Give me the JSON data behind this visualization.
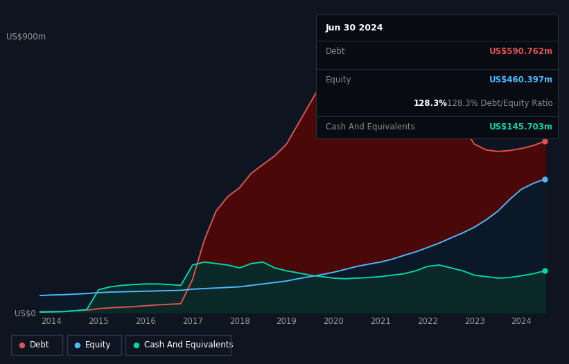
{
  "bg_color": "#0e1520",
  "plot_bg_color": "#0e1520",
  "grid_color": "#1a2535",
  "debt_color": "#e05252",
  "equity_color": "#4db8ff",
  "cash_color": "#00d4aa",
  "debt_fill": "#4a0808",
  "equity_fill": "#0a1828",
  "cash_fill": "#0a2828",
  "legend_labels": [
    "Debt",
    "Equity",
    "Cash And Equivalents"
  ],
  "tooltip_date": "Jun 30 2024",
  "tooltip_debt_label": "Debt",
  "tooltip_debt": "US$590.762m",
  "tooltip_equity_label": "Equity",
  "tooltip_equity": "US$460.397m",
  "tooltip_ratio": "128.3%",
  "tooltip_ratio_text": " Debt/Equity Ratio",
  "tooltip_cash_label": "Cash And Equivalents",
  "tooltip_cash": "US$145.703m",
  "years": [
    2013.75,
    2014.0,
    2014.25,
    2014.5,
    2014.75,
    2015.0,
    2015.25,
    2015.5,
    2015.75,
    2016.0,
    2016.25,
    2016.5,
    2016.75,
    2017.0,
    2017.25,
    2017.5,
    2017.75,
    2018.0,
    2018.25,
    2018.5,
    2018.75,
    2019.0,
    2019.25,
    2019.5,
    2019.75,
    2020.0,
    2020.25,
    2020.5,
    2020.75,
    2021.0,
    2021.25,
    2021.5,
    2021.75,
    2022.0,
    2022.25,
    2022.5,
    2022.75,
    2023.0,
    2023.25,
    2023.5,
    2023.75,
    2024.0,
    2024.25,
    2024.5
  ],
  "debt": [
    5,
    5,
    5,
    8,
    10,
    15,
    18,
    20,
    22,
    25,
    28,
    30,
    32,
    115,
    250,
    350,
    400,
    430,
    480,
    510,
    540,
    580,
    650,
    720,
    790,
    830,
    820,
    800,
    780,
    760,
    750,
    730,
    720,
    710,
    690,
    670,
    640,
    580,
    560,
    555,
    558,
    565,
    575,
    590
  ],
  "equity": [
    60,
    62,
    63,
    65,
    67,
    70,
    72,
    73,
    74,
    75,
    76,
    77,
    78,
    82,
    84,
    86,
    88,
    90,
    95,
    100,
    105,
    110,
    118,
    125,
    132,
    140,
    150,
    160,
    168,
    175,
    185,
    198,
    210,
    225,
    240,
    258,
    275,
    295,
    320,
    350,
    390,
    425,
    445,
    460
  ],
  "cash": [
    3,
    4,
    5,
    8,
    12,
    80,
    90,
    95,
    98,
    100,
    100,
    98,
    95,
    165,
    175,
    170,
    165,
    155,
    170,
    175,
    155,
    145,
    138,
    130,
    125,
    120,
    118,
    120,
    122,
    125,
    130,
    135,
    145,
    160,
    165,
    155,
    145,
    130,
    125,
    120,
    122,
    128,
    135,
    145
  ],
  "ylim": [
    0,
    900
  ],
  "xlim": [
    2013.75,
    2024.65
  ],
  "ytick_900": "US$900m",
  "ytick_0": "US$0",
  "xticks": [
    2014,
    2015,
    2016,
    2017,
    2018,
    2019,
    2020,
    2021,
    2022,
    2023,
    2024
  ]
}
